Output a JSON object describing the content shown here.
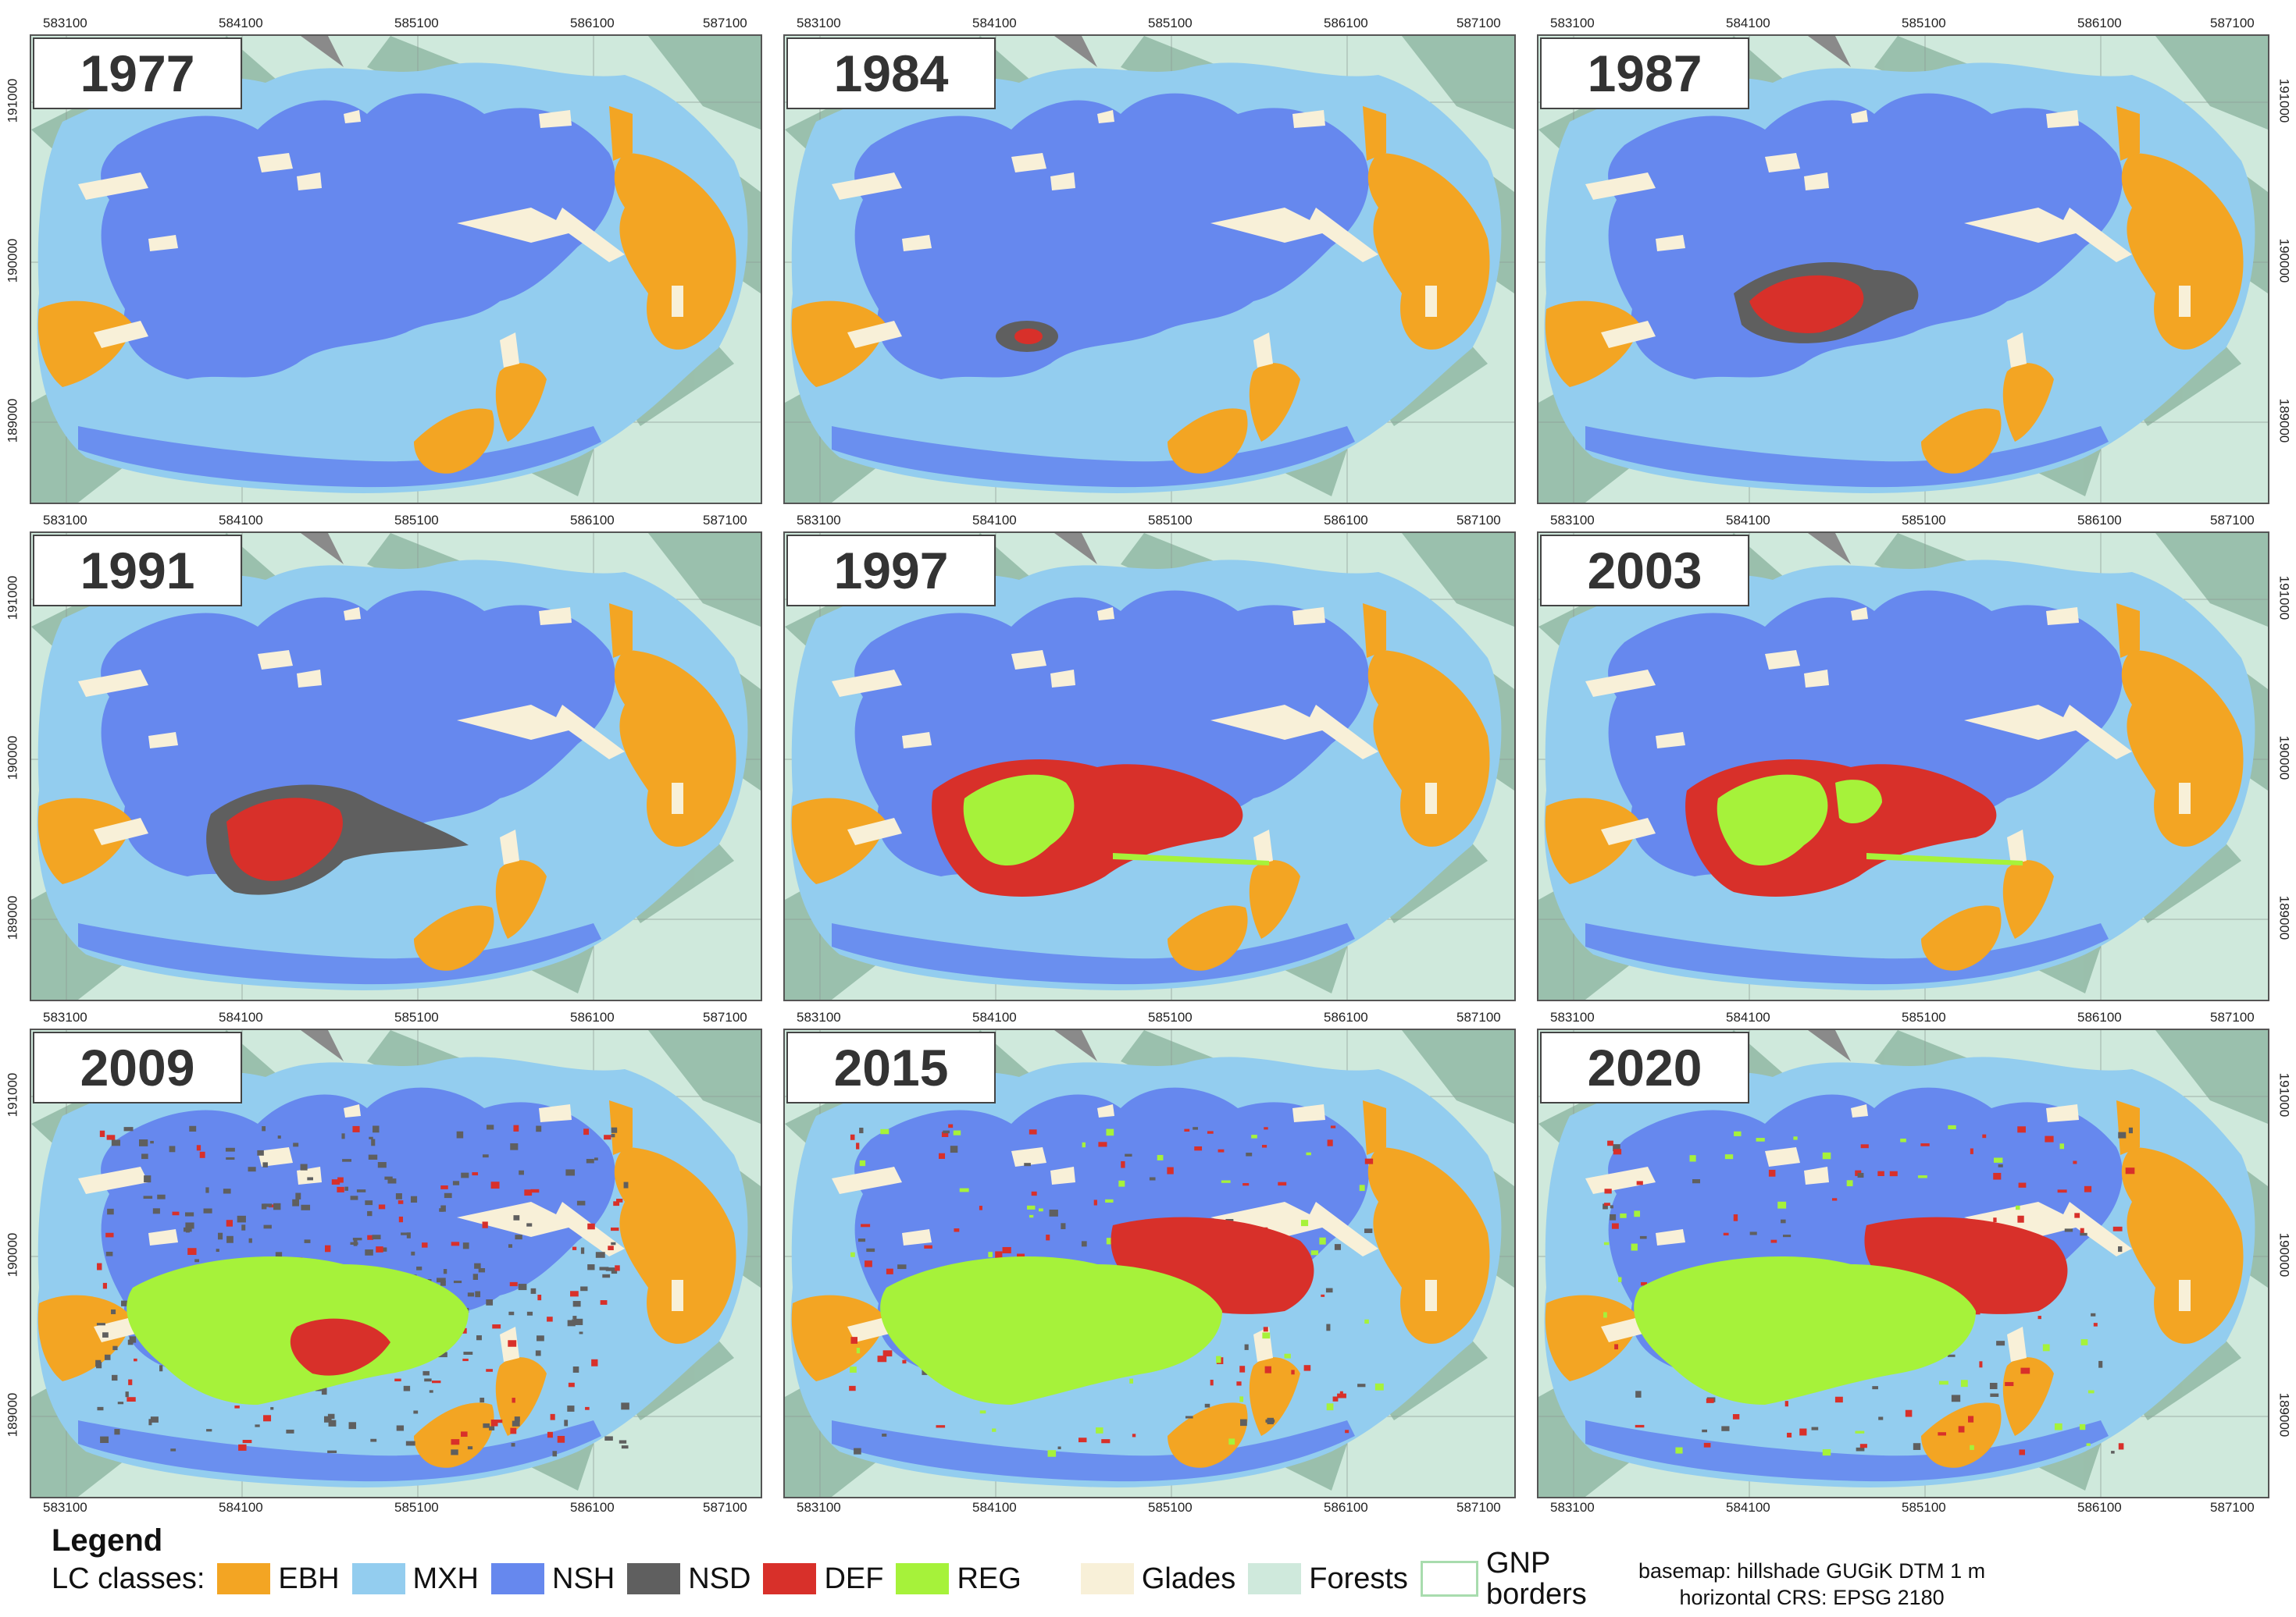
{
  "panels": [
    {
      "year": "1977",
      "stage": 0
    },
    {
      "year": "1984",
      "stage": 1
    },
    {
      "year": "1987",
      "stage": 2
    },
    {
      "year": "1991",
      "stage": 3
    },
    {
      "year": "1997",
      "stage": 4
    },
    {
      "year": "2003",
      "stage": 5
    },
    {
      "year": "2009",
      "stage": 6
    },
    {
      "year": "2015",
      "stage": 7
    },
    {
      "year": "2020",
      "stage": 8
    }
  ],
  "axis": {
    "x_ticks": [
      "583100",
      "584100",
      "585100",
      "586100",
      "587100"
    ],
    "y_ticks": [
      "191000",
      "190000",
      "189000"
    ]
  },
  "colors": {
    "EBH": "#f3a523",
    "MXH": "#93cdef",
    "NSH": "#6688ee",
    "NSD": "#5f5f5f",
    "DEF": "#d8302a",
    "REG": "#a6f23a",
    "Glades": "#f8f0d8",
    "Forests": "#cfe9dc",
    "GNP": "#a8dcae"
  },
  "legend": {
    "title": "Legend",
    "lc_label": "LC classes:",
    "classes": [
      {
        "code": "EBH",
        "label": "EBH"
      },
      {
        "code": "MXH",
        "label": "MXH"
      },
      {
        "code": "NSH",
        "label": "NSH"
      },
      {
        "code": "NSD",
        "label": "NSD"
      },
      {
        "code": "DEF",
        "label": "DEF"
      },
      {
        "code": "REG",
        "label": "REG"
      }
    ],
    "glades": "Glades",
    "forests": "Forests",
    "gnp_line1": "GNP",
    "gnp_line2": "borders",
    "credit_line1": "basemap: hillshade GUGiK DTM 1 m",
    "credit_line2": "horizontal CRS: EPSG 2180"
  }
}
